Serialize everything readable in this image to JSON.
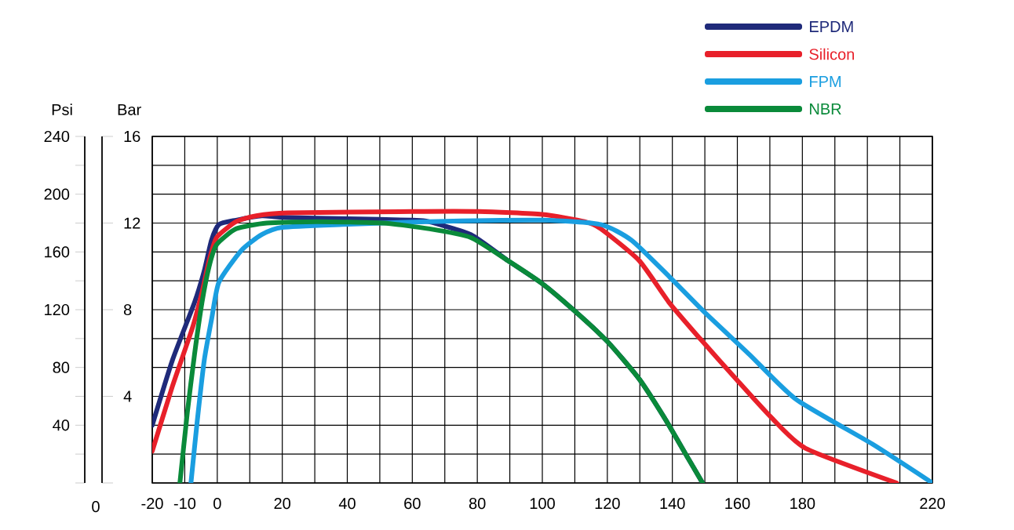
{
  "chart_data": {
    "type": "line",
    "ylabel": "Psi",
    "y2label": "Bar",
    "annotations": [
      "0"
    ],
    "xlim": [
      -20,
      220
    ],
    "xticks": [
      -20,
      -10,
      0,
      {
        "value": 10,
        "label": null
      },
      20,
      {
        "value": 30,
        "label": null
      },
      40,
      {
        "value": 50,
        "label": null
      },
      60,
      {
        "value": 70,
        "label": null
      },
      80,
      {
        "value": 90,
        "label": null
      },
      100,
      {
        "value": 110,
        "label": null
      },
      120,
      {
        "value": 130,
        "label": null
      },
      140,
      {
        "value": 150,
        "label": null
      },
      160,
      {
        "value": 170,
        "label": null
      },
      180,
      {
        "value": 190,
        "label": null
      },
      {
        "value": 200,
        "label": null
      },
      {
        "value": 210,
        "label": null
      },
      220
    ],
    "ylim": [
      0,
      240
    ],
    "yticks": [
      {
        "value": 0,
        "label": null
      },
      {
        "value": 20,
        "label": null
      },
      40,
      {
        "value": 60,
        "label": null
      },
      80,
      {
        "value": 100,
        "label": null
      },
      120,
      {
        "value": 140,
        "label": null
      },
      160,
      {
        "value": 180,
        "label": null
      },
      200,
      {
        "value": 220,
        "label": null
      },
      240
    ],
    "y2lim": [
      0,
      16
    ],
    "y2ticks": [
      {
        "value": 0,
        "label": null
      },
      4,
      8,
      12,
      16
    ],
    "grid": true,
    "legend": "top right",
    "series": [
      {
        "name": "EPDM",
        "color": "#1f2a7a",
        "x": [
          -20,
          -13.8,
          -7,
          -4,
          -1.8,
          0.5,
          5.8,
          13.7,
          20,
          40,
          60,
          65,
          78,
          89.4,
          100,
          110,
          120,
          129.8,
          137.6,
          144.1,
          149.3
        ],
        "values": [
          40,
          85,
          125,
          147,
          168,
          179,
          182,
          185,
          184,
          183,
          182,
          181,
          172,
          154,
          138,
          119,
          98,
          72,
          45,
          20,
          0
        ]
      },
      {
        "name": "Silicon",
        "color": "#e8202a",
        "x": [
          -20,
          -13.8,
          -7.7,
          -4.7,
          -2.5,
          -0.2,
          5.8,
          12,
          21.6,
          60,
          80.5,
          100,
          113,
          118,
          129.8,
          139,
          148.5,
          160,
          170.6,
          181,
          209
        ],
        "values": [
          22,
          67,
          107,
          132,
          154,
          170,
          181,
          185,
          187,
          188,
          188,
          186,
          181,
          176,
          154,
          125,
          100,
          71,
          45,
          24,
          0
        ]
      },
      {
        "name": "FPM",
        "color": "#1a9ee0",
        "x": [
          -8.1,
          -6.2,
          -4,
          -1.7,
          0.5,
          7.4,
          13.7,
          20,
          38.6,
          65,
          100,
          118,
          127.5,
          139,
          150,
          163.7,
          178,
          201.5,
          220
        ],
        "values": [
          0,
          42,
          85,
          114,
          139,
          161,
          172,
          177,
          179,
          181,
          182,
          179,
          168,
          143,
          118,
          89,
          58,
          27,
          0
        ]
      },
      {
        "name": "NBR",
        "color": "#0a8a3a",
        "x": [
          -11.5,
          -9.2,
          -7,
          -4.7,
          -2.5,
          -0.2,
          5.8,
          15.2,
          30.9,
          51,
          65.3,
          78,
          89.4,
          100,
          110,
          120,
          129.8,
          137.6,
          144.1,
          149.3
        ],
        "values": [
          0,
          49,
          89,
          125,
          150,
          165,
          176,
          180,
          181,
          180,
          176,
          170,
          154,
          138,
          119,
          98,
          72,
          45,
          20,
          0
        ]
      }
    ]
  }
}
